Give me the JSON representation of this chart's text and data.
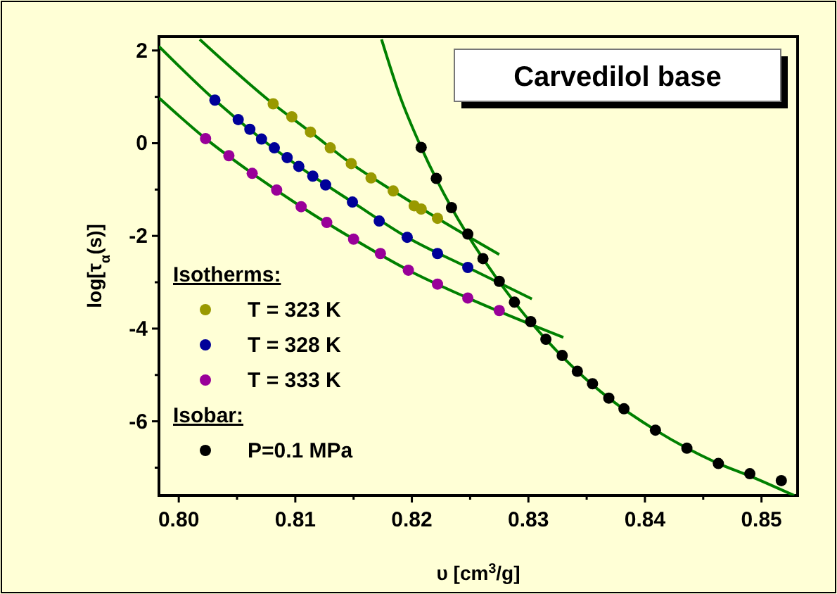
{
  "chart_data": {
    "type": "scatter",
    "title": "Carvedilol base",
    "xlabel": "υ [cm$^{3}$/g]",
    "ylabel": "log[τ$_{α}$(s)]",
    "legend_title": "Isotherms:",
    "annotations": [
      "Isobar:"
    ],
    "legend": "bottom left",
    "marker": "circle",
    "xlim": [
      0.7983,
      0.8531
    ],
    "ylim": [
      -7.6,
      2.3
    ],
    "xticks": [
      {
        "value": 0.8,
        "label": "0.80"
      },
      {
        "value": 0.805,
        "label": null
      },
      {
        "value": 0.81,
        "label": "0.81"
      },
      {
        "value": 0.815,
        "label": null
      },
      {
        "value": 0.82,
        "label": "0.82"
      },
      {
        "value": 0.825,
        "label": null
      },
      {
        "value": 0.83,
        "label": "0.83"
      },
      {
        "value": 0.835,
        "label": null
      },
      {
        "value": 0.84,
        "label": "0.84"
      },
      {
        "value": 0.845,
        "label": null
      },
      {
        "value": 0.85,
        "label": "0.85"
      }
    ],
    "yticks": [
      {
        "value": -7,
        "label": null
      },
      -6,
      {
        "value": -5,
        "label": null
      },
      -4,
      {
        "value": -3,
        "label": null
      },
      -2,
      {
        "value": -1,
        "label": null
      },
      0,
      {
        "value": 1,
        "label": null
      },
      2
    ],
    "series": [
      {
        "name": "T = 323 K",
        "color": "#999900",
        "x": [
          0.8081,
          0.8097,
          0.8113,
          0.813,
          0.8148,
          0.8165,
          0.8184,
          0.8202,
          0.8208,
          0.8222
        ],
        "values": [
          0.85,
          0.57,
          0.24,
          -0.1,
          -0.44,
          -0.75,
          -1.03,
          -1.35,
          -1.42,
          -1.62
        ]
      },
      {
        "name": "T = 328 K",
        "color": "#000099",
        "x": [
          0.8031,
          0.8051,
          0.8061,
          0.8071,
          0.8082,
          0.8093,
          0.8103,
          0.8115,
          0.8126,
          0.8149,
          0.8172,
          0.8196,
          0.8222,
          0.8248
        ],
        "values": [
          0.93,
          0.51,
          0.3,
          0.09,
          -0.1,
          -0.31,
          -0.5,
          -0.71,
          -0.9,
          -1.27,
          -1.68,
          -2.03,
          -2.38,
          -2.68
        ]
      },
      {
        "name": "T = 333 K",
        "color": "#990099",
        "x": [
          0.8023,
          0.8043,
          0.8063,
          0.8084,
          0.8105,
          0.8127,
          0.815,
          0.8173,
          0.8197,
          0.8222,
          0.8248,
          0.8275
        ],
        "values": [
          0.1,
          -0.27,
          -0.65,
          -1.01,
          -1.37,
          -1.71,
          -2.07,
          -2.38,
          -2.74,
          -3.04,
          -3.34,
          -3.61
        ]
      },
      {
        "name": "P=0.1 MPa",
        "color": "#000000",
        "x": [
          0.8208,
          0.8221,
          0.8234,
          0.8248,
          0.8261,
          0.8275,
          0.8288,
          0.8302,
          0.8315,
          0.8329,
          0.8342,
          0.8355,
          0.8369,
          0.8382,
          0.8409,
          0.8436,
          0.8463,
          0.849,
          0.8517
        ],
        "values": [
          -0.09,
          -0.76,
          -1.39,
          -1.96,
          -2.49,
          -2.98,
          -3.43,
          -3.85,
          -4.23,
          -4.58,
          -4.92,
          -5.19,
          -5.5,
          -5.73,
          -6.19,
          -6.58,
          -6.91,
          -7.13,
          -7.28
        ]
      },
      {
        "type": "line",
        "marker": "none",
        "color": "#008000",
        "x": [
          0.8018,
          0.8081,
          0.8113,
          0.8148,
          0.8184,
          0.8222,
          0.8275
        ],
        "values": [
          2.24,
          0.85,
          0.24,
          -0.44,
          -1.03,
          -1.62,
          -2.4
        ]
      },
      {
        "type": "line",
        "marker": "none",
        "color": "#008000",
        "x": [
          0.7983,
          0.8031,
          0.8071,
          0.8115,
          0.8149,
          0.8196,
          0.8248,
          0.8303
        ],
        "values": [
          2.09,
          0.93,
          0.09,
          -0.71,
          -1.27,
          -2.03,
          -2.68,
          -3.36
        ]
      },
      {
        "type": "line",
        "marker": "none",
        "color": "#008000",
        "x": [
          0.7983,
          0.8023,
          0.8063,
          0.8105,
          0.815,
          0.8197,
          0.8248,
          0.833
        ],
        "values": [
          0.98,
          0.1,
          -0.65,
          -1.37,
          -2.07,
          -2.74,
          -3.34,
          -4.19
        ]
      },
      {
        "type": "line",
        "marker": "none",
        "color": "#008000",
        "x": [
          0.8174,
          0.819,
          0.8208,
          0.8234,
          0.8261,
          0.8288,
          0.8315,
          0.8342,
          0.8369,
          0.8409,
          0.8436,
          0.8463,
          0.849,
          0.8528
        ],
        "values": [
          2.24,
          1.0,
          -0.09,
          -1.39,
          -2.49,
          -3.43,
          -4.23,
          -4.92,
          -5.5,
          -6.19,
          -6.58,
          -6.91,
          -7.18,
          -7.6
        ]
      }
    ]
  }
}
